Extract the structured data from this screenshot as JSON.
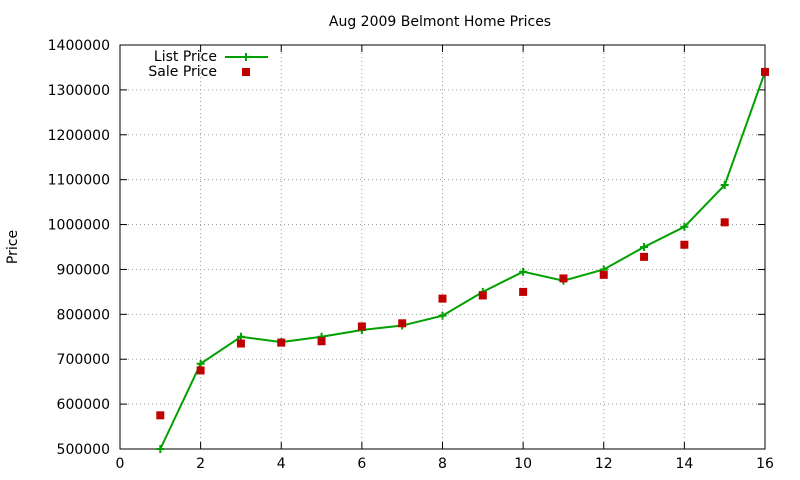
{
  "chart_data": {
    "type": "line",
    "title": "Aug 2009 Belmont Home Prices",
    "xlabel": "",
    "ylabel": "Price",
    "xlim": [
      0,
      16
    ],
    "ylim": [
      500000,
      1400000
    ],
    "x_ticks": [
      "0",
      "2",
      "4",
      "6",
      "8",
      "10",
      "12",
      "14",
      "16"
    ],
    "y_ticks": [
      "500000",
      "600000",
      "700000",
      "800000",
      "900000",
      "1000000",
      "1100000",
      "1200000",
      "1300000",
      "1400000"
    ],
    "grid": true,
    "legend_position": "top-left",
    "series": [
      {
        "name": "List Price",
        "style": "line+cross",
        "color": "#00a000",
        "x": [
          1,
          2,
          3,
          4,
          5,
          6,
          7,
          8,
          9,
          10,
          11,
          12,
          13,
          14,
          15,
          16
        ],
        "values": [
          500000,
          690000,
          750000,
          738000,
          750000,
          765000,
          775000,
          797000,
          850000,
          895000,
          875000,
          900000,
          950000,
          995000,
          1088000,
          1340000
        ]
      },
      {
        "name": "Sale Price",
        "style": "square",
        "color": "#c00000",
        "x": [
          1,
          2,
          3,
          4,
          5,
          6,
          7,
          8,
          9,
          10,
          11,
          12,
          13,
          14,
          15,
          16
        ],
        "values": [
          575000,
          675000,
          735000,
          737000,
          740000,
          773000,
          780000,
          835000,
          842000,
          850000,
          880000,
          888000,
          928000,
          955000,
          1005000,
          1340000
        ]
      }
    ]
  }
}
